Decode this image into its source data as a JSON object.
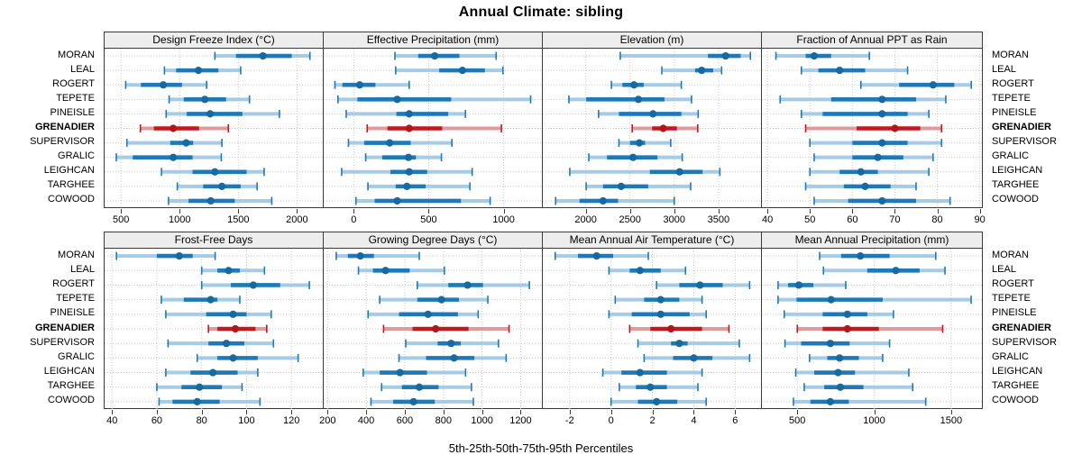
{
  "title": "Annual Climate: sibling",
  "caption": "5th-25th-50th-75th-95th Percentiles",
  "percentiles_shown": [
    5,
    25,
    50,
    75,
    95
  ],
  "stations": [
    "MORAN",
    "LEAL",
    "ROGERT",
    "TEPETE",
    "PINEISLE",
    "GRENADIER",
    "SUPERVISOR",
    "GRALIC",
    "LEIGHCAN",
    "TARGHEE",
    "COWOOD"
  ],
  "highlight_station": "GRENADIER",
  "colors": {
    "blue": "#1E79B6",
    "blue_pale": "#A5CBE5",
    "blue_dot": "#17699F",
    "red": "#C2191E",
    "red_pale": "#E09A9C",
    "red_dot": "#B2161B",
    "grid": "#C9C9C9",
    "strip_bg": "#EDEDED",
    "panel_border": "#3A3A3A"
  },
  "chart_data": [
    {
      "type": "dotplot-percentiles",
      "row": "top",
      "title": "Design Freeze Index (°C)",
      "xlim": [
        360,
        2220
      ],
      "ticks": [
        500,
        1000,
        1500,
        2000
      ],
      "values": [
        [
          1300,
          1480,
          1710,
          1955,
          2110
        ],
        [
          870,
          970,
          1160,
          1330,
          1520
        ],
        [
          540,
          670,
          860,
          1020,
          1230
        ],
        [
          910,
          1035,
          1215,
          1395,
          1595
        ],
        [
          885,
          1060,
          1260,
          1535,
          1850
        ],
        [
          665,
          780,
          945,
          1165,
          1415
        ],
        [
          550,
          920,
          1055,
          1115,
          1360
        ],
        [
          460,
          600,
          945,
          1110,
          1355
        ],
        [
          845,
          1110,
          1300,
          1570,
          1720
        ],
        [
          980,
          1200,
          1360,
          1520,
          1660
        ],
        [
          905,
          1075,
          1265,
          1470,
          1785
        ]
      ]
    },
    {
      "type": "dotplot-percentiles",
      "row": "top",
      "title": "Effective Precipitation (mm)",
      "xlim": [
        -200,
        1255
      ],
      "ticks": [
        0,
        500,
        1000
      ],
      "values": [
        [
          275,
          430,
          540,
          705,
          950
        ],
        [
          280,
          570,
          725,
          875,
          995
        ],
        [
          -125,
          -75,
          40,
          145,
          370
        ],
        [
          -105,
          25,
          290,
          650,
          1180
        ],
        [
          -50,
          285,
          370,
          630,
          745
        ],
        [
          90,
          225,
          370,
          590,
          985
        ],
        [
          -35,
          70,
          240,
          380,
          655
        ],
        [
          80,
          190,
          365,
          415,
          585
        ],
        [
          -80,
          245,
          370,
          490,
          790
        ],
        [
          95,
          280,
          355,
          480,
          775
        ],
        [
          15,
          140,
          290,
          715,
          910
        ]
      ]
    },
    {
      "type": "dotplot-percentiles",
      "row": "top",
      "title": "Elevation (m)",
      "xlim": [
        1515,
        3980
      ],
      "ticks": [
        2000,
        2500,
        3000,
        3500
      ],
      "values": [
        [
          2390,
          3380,
          3580,
          3750,
          3860
        ],
        [
          2860,
          3235,
          3310,
          3440,
          3535
        ],
        [
          2290,
          2415,
          2545,
          2655,
          3080
        ],
        [
          1810,
          2005,
          2595,
          2890,
          3195
        ],
        [
          2145,
          2375,
          2760,
          3080,
          3270
        ],
        [
          2525,
          2750,
          2875,
          3030,
          3265
        ],
        [
          2375,
          2500,
          2605,
          2670,
          2960
        ],
        [
          2035,
          2240,
          2535,
          2810,
          3090
        ],
        [
          1820,
          2725,
          3060,
          3320,
          3515
        ],
        [
          2005,
          2195,
          2400,
          2705,
          3185
        ],
        [
          1660,
          1930,
          2195,
          2365,
          3000
        ]
      ]
    },
    {
      "type": "dotplot-percentiles",
      "row": "top",
      "title": "Fraction of Annual PPT as Rain",
      "xlim": [
        38.7,
        90.5
      ],
      "ticks": [
        40,
        50,
        60,
        70,
        80,
        90
      ],
      "values": [
        [
          42,
          49,
          51,
          55,
          64
        ],
        [
          48,
          52,
          57,
          63,
          73
        ],
        [
          62,
          71,
          79,
          84,
          88
        ],
        [
          43,
          55,
          67,
          75,
          82
        ],
        [
          48,
          53,
          67,
          73,
          78
        ],
        [
          49,
          61,
          70,
          76,
          81
        ],
        [
          50,
          60,
          67,
          73,
          81
        ],
        [
          51,
          60,
          66,
          72,
          79
        ],
        [
          50,
          57,
          62,
          66,
          78
        ],
        [
          49,
          58,
          63,
          69,
          75
        ],
        [
          51,
          59,
          67,
          75,
          83
        ]
      ]
    },
    {
      "type": "dotplot-percentiles",
      "row": "bottom",
      "title": "Frost-Free Days",
      "xlim": [
        36.7,
        134
      ],
      "ticks": [
        40,
        60,
        80,
        100,
        120
      ],
      "values": [
        [
          42,
          60,
          70,
          76,
          86
        ],
        [
          80,
          87,
          92,
          97,
          108
        ],
        [
          80,
          93,
          103,
          115,
          128
        ],
        [
          62,
          72,
          84,
          87,
          97
        ],
        [
          64,
          82,
          94,
          100,
          111
        ],
        [
          83,
          87,
          95,
          104,
          109
        ],
        [
          65,
          83,
          91,
          99,
          112
        ],
        [
          78,
          87,
          94,
          105,
          123
        ],
        [
          64,
          75,
          85,
          96,
          105
        ],
        [
          60,
          71,
          79,
          89,
          98
        ],
        [
          61,
          67,
          78,
          88,
          106
        ]
      ]
    },
    {
      "type": "dotplot-percentiles",
      "row": "bottom",
      "title": "Growing Degree Days (°C)",
      "xlim": [
        180,
        1310
      ],
      "ticks": [
        200,
        400,
        600,
        800,
        1000,
        1200
      ],
      "values": [
        [
          245,
          305,
          370,
          440,
          675
        ],
        [
          360,
          435,
          500,
          625,
          805
        ],
        [
          665,
          825,
          925,
          1005,
          1245
        ],
        [
          470,
          665,
          790,
          880,
          1030
        ],
        [
          410,
          570,
          720,
          875,
          980
        ],
        [
          490,
          640,
          760,
          930,
          1140
        ],
        [
          605,
          770,
          840,
          890,
          1085
        ],
        [
          570,
          710,
          855,
          960,
          1125
        ],
        [
          385,
          470,
          575,
          715,
          915
        ],
        [
          480,
          585,
          675,
          775,
          945
        ],
        [
          425,
          540,
          645,
          755,
          955
        ]
      ]
    },
    {
      "type": "dotplot-percentiles",
      "row": "bottom",
      "title": "Mean Annual Air Temperature (°C)",
      "xlim": [
        -3.3,
        7.25
      ],
      "ticks": [
        -2,
        0,
        2,
        4,
        6
      ],
      "values": [
        [
          -2.7,
          -1.6,
          -0.7,
          0.1,
          1.8
        ],
        [
          -0.1,
          0.9,
          1.4,
          2.4,
          3.6
        ],
        [
          2.2,
          3.3,
          4.3,
          5.4,
          6.7
        ],
        [
          0.2,
          1.6,
          2.4,
          3.3,
          4.4
        ],
        [
          -0.1,
          1.0,
          2.4,
          3.8,
          4.6
        ],
        [
          0.9,
          1.9,
          2.9,
          4.4,
          5.7
        ],
        [
          1.3,
          2.9,
          3.3,
          3.7,
          6.2
        ],
        [
          1.6,
          3.0,
          4.0,
          4.9,
          6.7
        ],
        [
          -0.4,
          0.5,
          1.4,
          2.7,
          4.4
        ],
        [
          0.4,
          1.2,
          1.9,
          2.7,
          4.2
        ],
        [
          0.0,
          1.3,
          2.2,
          3.2,
          4.6
        ]
      ]
    },
    {
      "type": "dotplot-percentiles",
      "row": "bottom",
      "title": "Mean Annual Precipitation (mm)",
      "xlim": [
        270,
        1700
      ],
      "ticks": [
        500,
        1000,
        1500
      ],
      "values": [
        [
          645,
          785,
          910,
          1100,
          1400
        ],
        [
          670,
          955,
          1140,
          1295,
          1460
        ],
        [
          375,
          440,
          510,
          605,
          815
        ],
        [
          375,
          495,
          720,
          1055,
          1630
        ],
        [
          415,
          665,
          825,
          955,
          1125
        ],
        [
          500,
          665,
          825,
          1030,
          1445
        ],
        [
          420,
          525,
          715,
          840,
          1100
        ],
        [
          580,
          695,
          775,
          900,
          1055
        ],
        [
          490,
          610,
          765,
          875,
          1225
        ],
        [
          545,
          675,
          780,
          930,
          1250
        ],
        [
          475,
          585,
          715,
          835,
          1335
        ]
      ]
    }
  ]
}
